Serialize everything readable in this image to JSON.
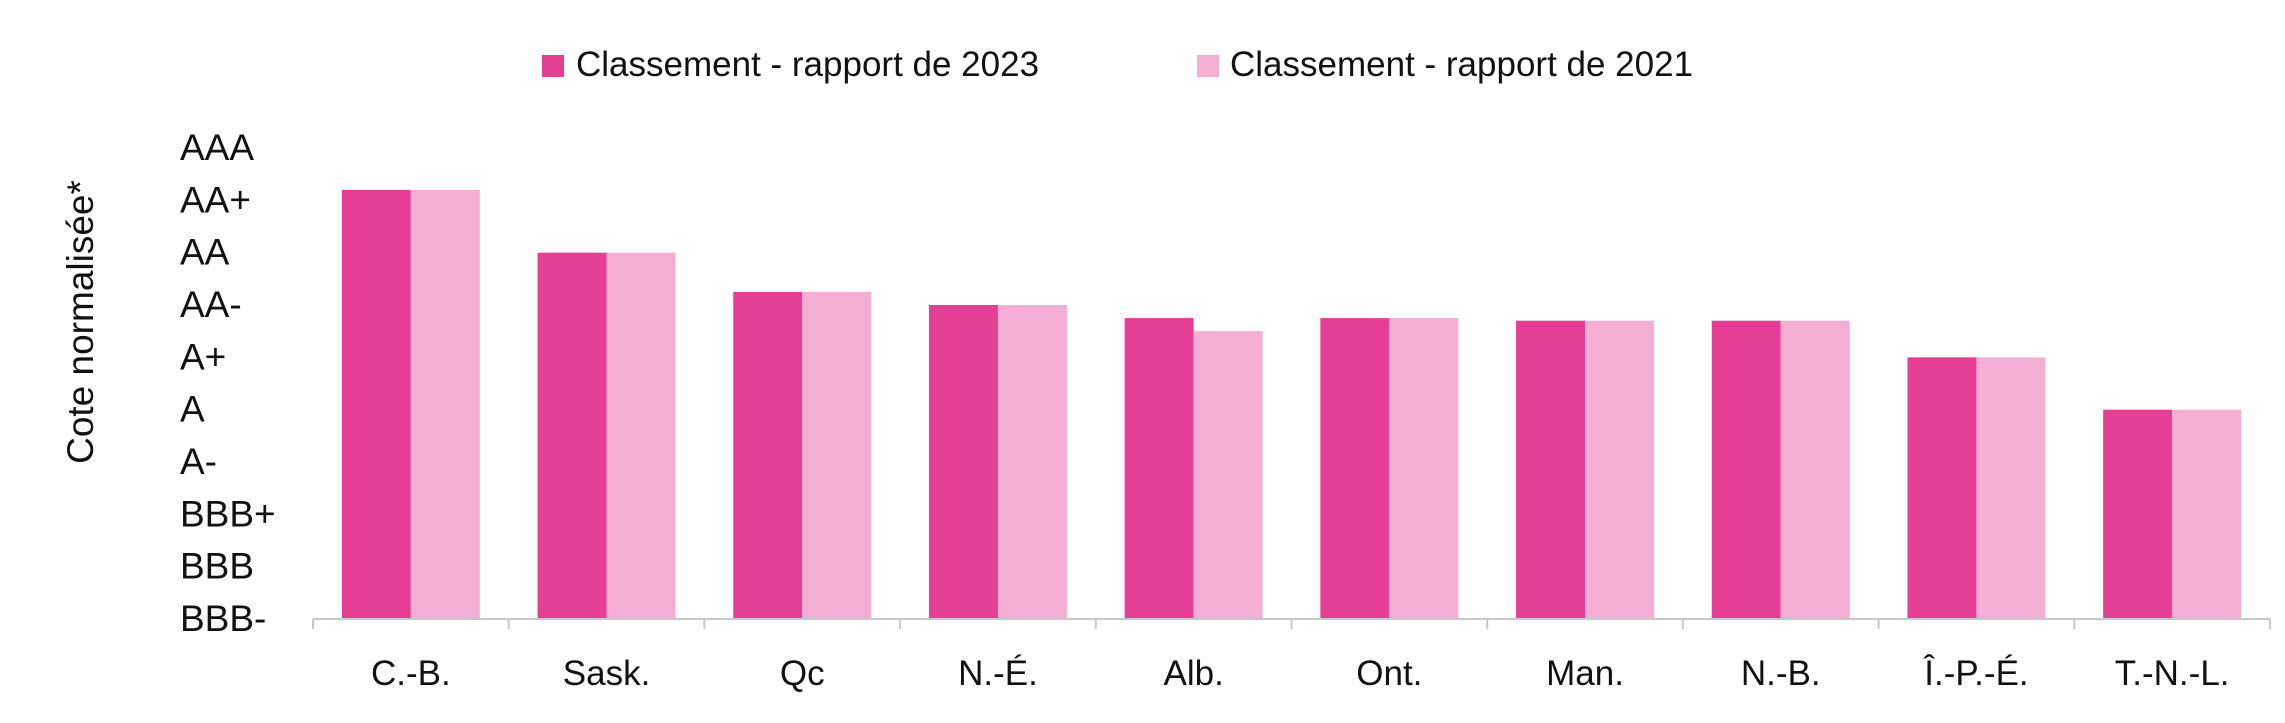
{
  "chart_data": {
    "type": "bar",
    "ylabel": "Cote normalisée*",
    "y_tick_labels": [
      "AAA",
      "AA+",
      "AA",
      "AA-",
      "A+",
      "A",
      "A-",
      "BBB+",
      "BBB",
      "BBB-"
    ],
    "ylim": [
      0,
      9
    ],
    "categories": [
      "C.-B.",
      "Sask.",
      "Qc",
      "N.-É.",
      "Alb.",
      "Ont.",
      "Man.",
      "N.-B.",
      "Î.-P.-É.",
      "T.-N.-L."
    ],
    "series": [
      {
        "name": "Classement - rapport de 2023",
        "color": "#E43F94",
        "values": [
          8.2,
          7.0,
          6.25,
          6.0,
          5.75,
          5.75,
          5.7,
          5.7,
          5.0,
          4.0
        ]
      },
      {
        "name": "Classement - rapport de 2021",
        "color": "#F5AED3",
        "values": [
          8.2,
          7.0,
          6.25,
          6.0,
          5.5,
          5.75,
          5.7,
          5.7,
          5.0,
          4.0
        ]
      }
    ],
    "legend_position": "top-center",
    "grid": false
  }
}
